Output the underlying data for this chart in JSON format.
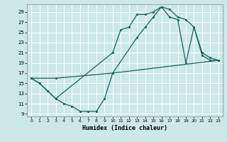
{
  "xlabel": "Humidex (Indice chaleur)",
  "bg_color": "#cce8e8",
  "grid_color": "#ffffff",
  "line_color": "#1a6060",
  "xlim": [
    -0.5,
    23.5
  ],
  "ylim": [
    8.5,
    30.5
  ],
  "yticks": [
    9,
    11,
    13,
    15,
    17,
    19,
    21,
    23,
    25,
    27,
    29
  ],
  "xticks": [
    0,
    1,
    2,
    3,
    4,
    5,
    6,
    7,
    8,
    9,
    10,
    11,
    12,
    13,
    14,
    15,
    16,
    17,
    18,
    19,
    20,
    21,
    22,
    23
  ],
  "line1_x": [
    0,
    1,
    2,
    3,
    10,
    11,
    12,
    13,
    14,
    15,
    16,
    17,
    18,
    19,
    20,
    21,
    22,
    23
  ],
  "line1_y": [
    16,
    15,
    13.5,
    12,
    21,
    25.5,
    26,
    28.5,
    28.5,
    29,
    30,
    29.5,
    28,
    27.5,
    26,
    21,
    20,
    19.5
  ],
  "line2_x": [
    0,
    3,
    10,
    13,
    14,
    15,
    16,
    17,
    18,
    19,
    20,
    21,
    22,
    23
  ],
  "line2_y": [
    16,
    16,
    17,
    24,
    26,
    28,
    30,
    28,
    27.5,
    19,
    26,
    20.5,
    19.5,
    19.5
  ],
  "line3_x": [
    0,
    1,
    2,
    3,
    4,
    5,
    6,
    7,
    8,
    9,
    10,
    23
  ],
  "line3_y": [
    16,
    15,
    13.5,
    12,
    11,
    10.5,
    9.5,
    9.5,
    9.5,
    12,
    17,
    19.5
  ]
}
